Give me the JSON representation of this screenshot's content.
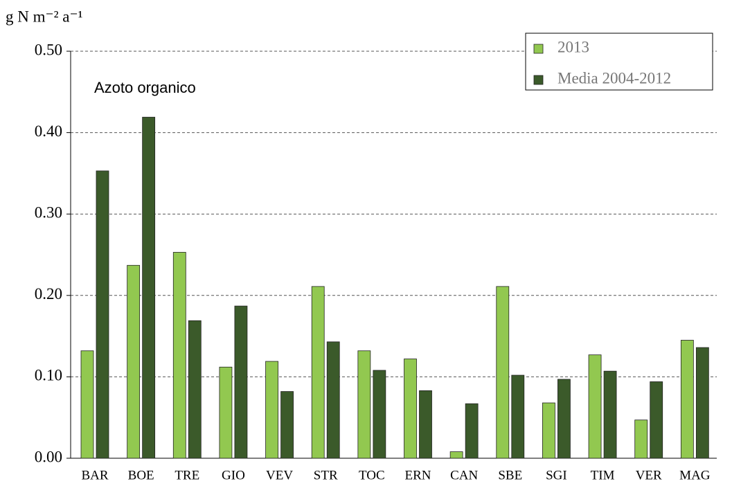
{
  "chart_data": {
    "type": "bar",
    "y_label": "g N m⁻² a⁻¹",
    "annotation": "Azoto organico",
    "categories": [
      "BAR",
      "BOE",
      "TRE",
      "GIO",
      "VEV",
      "STR",
      "TOC",
      "ERN",
      "CAN",
      "SBE",
      "SGI",
      "TIM",
      "VER",
      "MAG"
    ],
    "series": [
      {
        "name": "2013",
        "color": "#92c850",
        "values": [
          0.132,
          0.237,
          0.253,
          0.112,
          0.119,
          0.211,
          0.132,
          0.122,
          0.008,
          0.211,
          0.068,
          0.127,
          0.047,
          0.145
        ]
      },
      {
        "name": "Media 2004-2012",
        "color": "#3b5a2a",
        "values": [
          0.353,
          0.419,
          0.169,
          0.187,
          0.082,
          0.143,
          0.108,
          0.083,
          0.067,
          0.102,
          0.097,
          0.107,
          0.094,
          0.136
        ]
      }
    ],
    "ylim": [
      0,
      0.5
    ],
    "yticks": [
      {
        "value": 0,
        "label": "0.00"
      },
      {
        "value": 0.1,
        "label": "0.10"
      },
      {
        "value": 0.2,
        "label": "0.20"
      },
      {
        "value": 0.3,
        "label": "0.30"
      },
      {
        "value": 0.4,
        "label": "0.40"
      },
      {
        "value": 0.5,
        "label": "0.50"
      }
    ],
    "grid": true,
    "legend": "top-right"
  }
}
